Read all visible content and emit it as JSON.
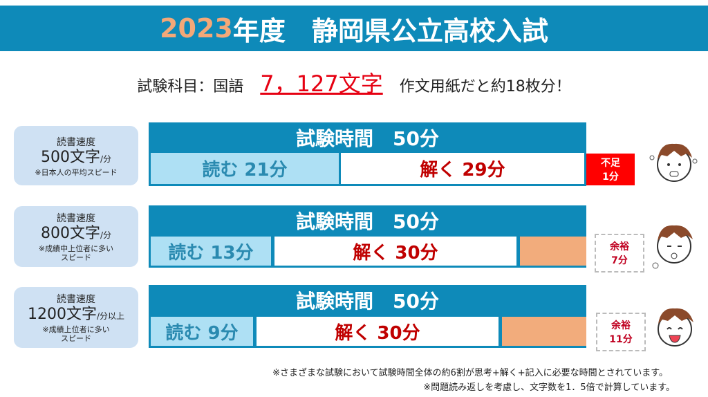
{
  "header": {
    "year": "2023",
    "title": "年度　静岡県公立高校入試"
  },
  "subtitle": {
    "prefix": "試験科目：国語",
    "count": "7，127文字",
    "suffix": "作文用紙だと約18枚分！"
  },
  "rows": [
    {
      "label": "読書速度",
      "speed": "500文字",
      "unit": "/分",
      "note": "※日本人の平均スピード",
      "note2": "",
      "exam": "試験時間　50分",
      "read": "読む 21分",
      "solve": "解く 29分",
      "extra_top": "不足",
      "extra_bottom": "1分",
      "face": "crying-face"
    },
    {
      "label": "読書速度",
      "speed": "800文字",
      "unit": "/分",
      "note": "※成績中上位者に多い",
      "note2": "スピード",
      "exam": "試験時間　50分",
      "read": "読む 13分",
      "solve": "解く 30分",
      "extra_top": "余裕",
      "extra_bottom": "7分",
      "face": "relieved-face"
    },
    {
      "label": "読書速度",
      "speed": "1200文字",
      "unit": "/分以上",
      "note": "※成績上位者に多い",
      "note2": "スピード",
      "exam": "試験時間　50分",
      "read": "読む 9分",
      "solve": "解く 30分",
      "extra_top": "余裕",
      "extra_bottom": "11分",
      "face": "laughing-face"
    }
  ],
  "footnotes": [
    "※さまざまな試験において試験時間全体の約6割が思考+解く+記入に必要な時間とされています。",
    "※問題読み返しを考慮し、文字数を1．5倍で計算しています。"
  ]
}
